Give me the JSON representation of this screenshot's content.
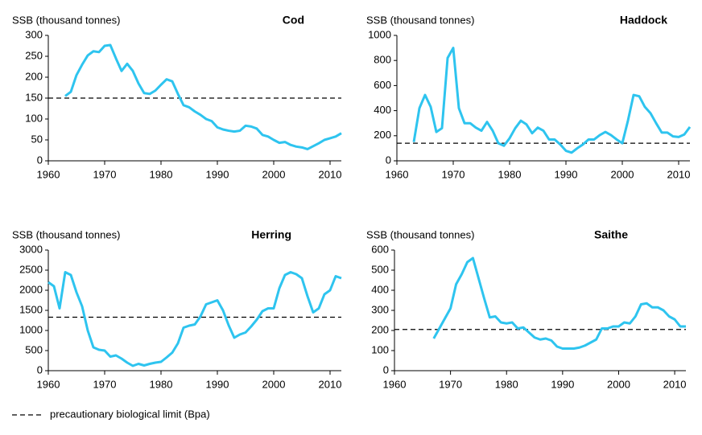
{
  "chart_data": [
    {
      "type": "line",
      "title": "Cod",
      "ylabel": "SSB (thousand tonnes)",
      "color": "#2ec4ef",
      "bpa": 150,
      "x": [
        1963,
        1964,
        1965,
        1966,
        1967,
        1968,
        1969,
        1970,
        1971,
        1972,
        1973,
        1974,
        1975,
        1976,
        1977,
        1978,
        1979,
        1980,
        1981,
        1982,
        1983,
        1984,
        1985,
        1986,
        1987,
        1988,
        1989,
        1990,
        1991,
        1992,
        1993,
        1994,
        1995,
        1996,
        1997,
        1998,
        1999,
        2000,
        2001,
        2002,
        2003,
        2004,
        2005,
        2006,
        2007,
        2008,
        2009,
        2010,
        2011,
        2012
      ],
      "values": [
        155,
        165,
        205,
        230,
        252,
        262,
        260,
        275,
        277,
        245,
        215,
        232,
        215,
        185,
        162,
        160,
        168,
        182,
        195,
        190,
        160,
        133,
        128,
        118,
        110,
        100,
        95,
        80,
        75,
        72,
        70,
        72,
        84,
        82,
        77,
        62,
        58,
        50,
        43,
        45,
        38,
        34,
        32,
        28,
        35,
        42,
        50,
        54,
        58,
        66
      ],
      "xlim": [
        1960,
        2012
      ],
      "xticks": [
        1960,
        1970,
        1980,
        1990,
        2000,
        2010
      ],
      "ylim": [
        0,
        300
      ],
      "yticks": [
        0,
        50,
        100,
        150,
        200,
        250,
        300
      ]
    },
    {
      "type": "line",
      "title": "Haddock",
      "ylabel": "SSB (thousand tonnes)",
      "color": "#2ec4ef",
      "bpa": 140,
      "x": [
        1963,
        1964,
        1965,
        1966,
        1967,
        1968,
        1969,
        1970,
        1971,
        1972,
        1973,
        1974,
        1975,
        1976,
        1977,
        1978,
        1979,
        1980,
        1981,
        1982,
        1983,
        1984,
        1985,
        1986,
        1987,
        1988,
        1989,
        1990,
        1991,
        1992,
        1993,
        1994,
        1995,
        1996,
        1997,
        1998,
        1999,
        2000,
        2001,
        2002,
        2003,
        2004,
        2005,
        2006,
        2007,
        2008,
        2009,
        2010,
        2011,
        2012
      ],
      "values": [
        150,
        420,
        525,
        430,
        230,
        260,
        820,
        900,
        420,
        300,
        300,
        265,
        240,
        310,
        240,
        140,
        120,
        180,
        260,
        320,
        290,
        220,
        265,
        240,
        170,
        170,
        130,
        80,
        65,
        100,
        130,
        170,
        170,
        205,
        230,
        205,
        170,
        140,
        320,
        525,
        515,
        430,
        380,
        300,
        225,
        225,
        195,
        190,
        210,
        270
      ],
      "xlim": [
        1960,
        2012
      ],
      "xticks": [
        1960,
        1970,
        1980,
        1990,
        2000,
        2010
      ],
      "ylim": [
        0,
        1000
      ],
      "yticks": [
        0,
        200,
        400,
        600,
        800,
        1000
      ]
    },
    {
      "type": "line",
      "title": "Herring",
      "ylabel": "SSB (thousand tonnes)",
      "color": "#2ec4ef",
      "bpa": 1330,
      "x": [
        1960,
        1961,
        1962,
        1963,
        1964,
        1965,
        1966,
        1967,
        1968,
        1969,
        1970,
        1971,
        1972,
        1973,
        1974,
        1975,
        1976,
        1977,
        1978,
        1979,
        1980,
        1981,
        1982,
        1983,
        1984,
        1985,
        1986,
        1987,
        1988,
        1989,
        1990,
        1991,
        1992,
        1993,
        1994,
        1995,
        1996,
        1997,
        1998,
        1999,
        2000,
        2001,
        2002,
        2003,
        2004,
        2005,
        2006,
        2007,
        2008,
        2009,
        2010,
        2011,
        2012
      ],
      "values": [
        2200,
        2100,
        1550,
        2450,
        2380,
        1950,
        1600,
        1000,
        580,
        520,
        500,
        350,
        380,
        300,
        200,
        120,
        170,
        130,
        170,
        200,
        220,
        330,
        450,
        680,
        1070,
        1120,
        1150,
        1350,
        1650,
        1700,
        1750,
        1500,
        1130,
        820,
        900,
        950,
        1100,
        1270,
        1480,
        1550,
        1550,
        2050,
        2380,
        2450,
        2400,
        2300,
        1850,
        1450,
        1550,
        1900,
        2000,
        2350,
        2300
      ],
      "xlim": [
        1960,
        2012
      ],
      "xticks": [
        1960,
        1970,
        1980,
        1990,
        2000,
        2010
      ],
      "ylim": [
        0,
        3000
      ],
      "yticks": [
        0,
        500,
        1000,
        1500,
        2000,
        2500,
        3000
      ]
    },
    {
      "type": "line",
      "title": "Saithe",
      "ylabel": "SSB (thousand tonnes)",
      "color": "#2ec4ef",
      "bpa": 205,
      "x": [
        1967,
        1968,
        1969,
        1970,
        1971,
        1972,
        1973,
        1974,
        1975,
        1976,
        1977,
        1978,
        1979,
        1980,
        1981,
        1982,
        1983,
        1984,
        1985,
        1986,
        1987,
        1988,
        1989,
        1990,
        1991,
        1992,
        1993,
        1994,
        1995,
        1996,
        1997,
        1998,
        1999,
        2000,
        2001,
        2002,
        2003,
        2004,
        2005,
        2006,
        2007,
        2008,
        2009,
        2010,
        2011,
        2012
      ],
      "values": [
        160,
        210,
        260,
        310,
        430,
        480,
        540,
        560,
        460,
        360,
        265,
        270,
        240,
        235,
        240,
        210,
        215,
        190,
        165,
        155,
        160,
        150,
        120,
        110,
        110,
        110,
        115,
        125,
        140,
        155,
        210,
        210,
        220,
        220,
        240,
        235,
        270,
        330,
        335,
        315,
        315,
        300,
        270,
        255,
        220,
        220
      ],
      "xlim": [
        1960,
        2012
      ],
      "xticks": [
        1960,
        1970,
        1980,
        1990,
        2000,
        2010
      ],
      "ylim": [
        0,
        600
      ],
      "yticks": [
        0,
        100,
        200,
        300,
        400,
        500,
        600
      ]
    }
  ],
  "legend_label": "precautionary biological limit (Bpa)"
}
